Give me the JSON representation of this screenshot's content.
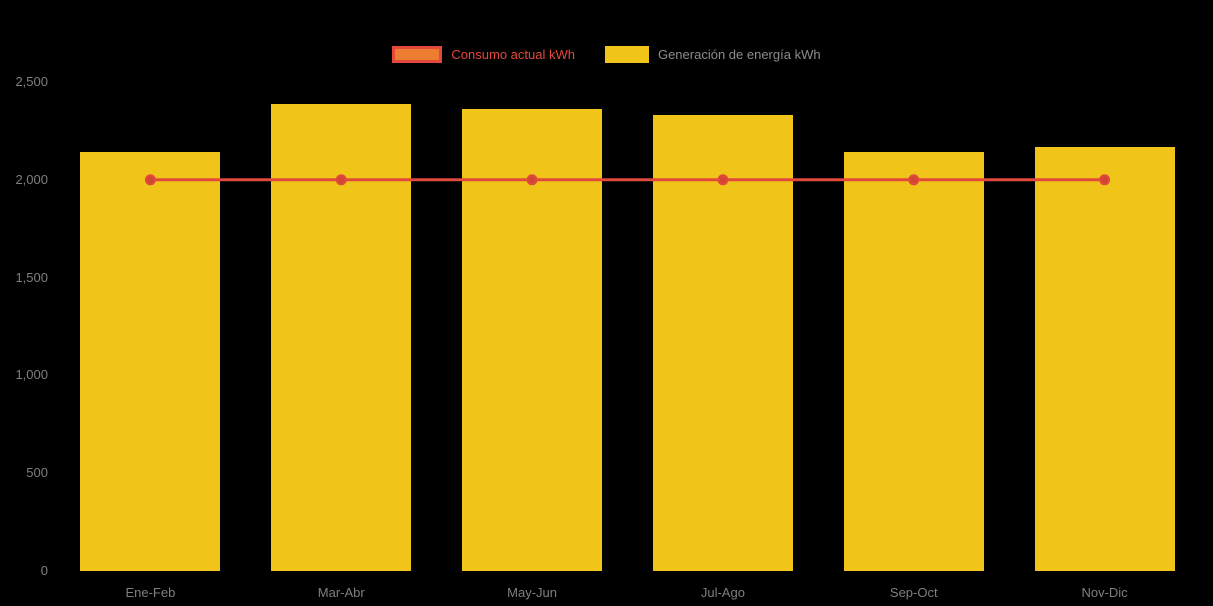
{
  "chart_data": {
    "type": "bar",
    "title": "",
    "xlabel": "",
    "ylabel": "",
    "categories": [
      "Ene-Feb",
      "Mar-Abr",
      "May-Jun",
      "Jul-Ago",
      "Sep-Oct",
      "Nov-Dic"
    ],
    "series": [
      {
        "name": "Consumo actual kWh",
        "type": "line",
        "values": [
          2000,
          2000,
          2000,
          2000,
          2000,
          2000
        ],
        "color": "#e2493b",
        "marker_color": "#d14534"
      },
      {
        "name": "Generación de energía kWh",
        "type": "bar",
        "values": [
          2140,
          2390,
          2360,
          2330,
          2140,
          2170
        ],
        "color": "#f0c419"
      }
    ],
    "ylim": [
      0,
      2500
    ],
    "y_ticks": [
      {
        "value": 0,
        "label": "0"
      },
      {
        "value": 500,
        "label": "500"
      },
      {
        "value": 1000,
        "label": "1,000"
      },
      {
        "value": 1500,
        "label": "1,500"
      },
      {
        "value": 2000,
        "label": "2,000"
      },
      {
        "value": 2500,
        "label": "2,500"
      }
    ],
    "grid": false,
    "legend_position": "top",
    "background_color": "#000000",
    "axis_label_color": "#7f7f7f"
  },
  "legend": {
    "consumo_label": "Consumo actual kWh",
    "consumo_text_color": "#e2493b",
    "consumo_swatch_fill": "#ed7d31",
    "consumo_swatch_border": "#e2493b",
    "generacion_label": "Generación de energía kWh",
    "generacion_text_color": "#8c8c8c",
    "generacion_swatch_fill": "#f0c419"
  }
}
